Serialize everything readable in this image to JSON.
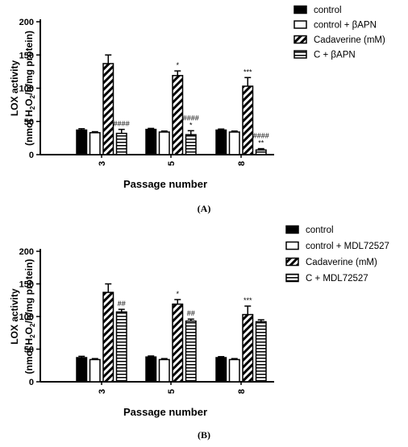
{
  "chart_data": [
    {
      "type": "bar",
      "panel_label": "(A)",
      "xlabel": "Passage number",
      "ylabel_line1": "LOX activity",
      "ylabel_line2_prefix": "(nmol H",
      "ylabel_sub1": "2",
      "ylabel_mid": "O",
      "ylabel_sub2": "2",
      "ylabel_suffix": "/h/mg protein)",
      "ylim": [
        0,
        200
      ],
      "yticks": [
        "0",
        "50",
        "100",
        "150",
        "200"
      ],
      "categories": [
        "3",
        "5",
        "8"
      ],
      "series": [
        {
          "name": "control",
          "values": [
            37,
            38,
            37
          ],
          "errors": [
            2,
            1.5,
            1.5
          ],
          "pattern": "solid"
        },
        {
          "name": "control + βAPN",
          "values": [
            33,
            34,
            34
          ],
          "errors": [
            1.5,
            1.5,
            1.5
          ],
          "pattern": "open"
        },
        {
          "name": "Cadaverine (mM)",
          "values": [
            137,
            119,
            103
          ],
          "errors": [
            13,
            7,
            13
          ],
          "pattern": "diagonal"
        },
        {
          "name": "C + βAPN",
          "values": [
            32,
            30,
            7
          ],
          "errors": [
            6,
            6,
            2
          ],
          "pattern": "horizontal"
        }
      ],
      "annotations": [
        {
          "series": 2,
          "category": 1,
          "lines": [
            "*"
          ]
        },
        {
          "series": 2,
          "category": 2,
          "lines": [
            "***"
          ]
        },
        {
          "series": 3,
          "category": 0,
          "lines": [
            "####"
          ]
        },
        {
          "series": 3,
          "category": 1,
          "lines": [
            "####",
            "*"
          ]
        },
        {
          "series": 3,
          "category": 2,
          "lines": [
            "####",
            "**"
          ]
        }
      ],
      "legend_placement": "right"
    },
    {
      "type": "bar",
      "panel_label": "(B)",
      "xlabel": "Passage number",
      "ylabel_line1": "LOX activity",
      "ylabel_line2_prefix": "(nmol H",
      "ylabel_sub1": "2",
      "ylabel_mid": "O",
      "ylabel_sub2": "2",
      "ylabel_suffix": "/h/mg protein)",
      "ylim": [
        0,
        200
      ],
      "yticks": [
        "0",
        "50",
        "100",
        "150",
        "200"
      ],
      "categories": [
        "3",
        "5",
        "8"
      ],
      "series": [
        {
          "name": "control",
          "values": [
            37,
            38,
            37
          ],
          "errors": [
            2,
            1.5,
            1.5
          ],
          "pattern": "solid"
        },
        {
          "name": "control + MDL72527",
          "values": [
            34,
            34,
            34
          ],
          "errors": [
            1.5,
            1.5,
            1.5
          ],
          "pattern": "open"
        },
        {
          "name": "Cadaverine (mM)",
          "values": [
            137,
            119,
            103
          ],
          "errors": [
            13,
            7,
            13
          ],
          "pattern": "diagonal"
        },
        {
          "name": "C + MDL72527",
          "values": [
            107,
            93,
            92
          ],
          "errors": [
            4,
            3,
            3
          ],
          "pattern": "horizontal"
        }
      ],
      "annotations": [
        {
          "series": 2,
          "category": 1,
          "lines": [
            "*"
          ]
        },
        {
          "series": 2,
          "category": 2,
          "lines": [
            "***"
          ]
        },
        {
          "series": 3,
          "category": 0,
          "lines": [
            "##"
          ]
        },
        {
          "series": 3,
          "category": 1,
          "lines": [
            "##"
          ]
        }
      ],
      "legend_placement": "right"
    }
  ]
}
